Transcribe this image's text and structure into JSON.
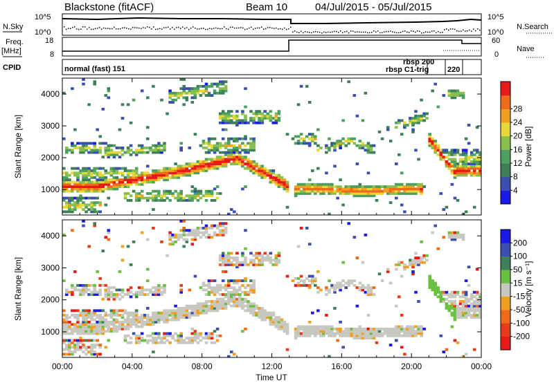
{
  "header": {
    "station": "Blackstone (fitACF)",
    "beam": "Beam 10",
    "date_range": "04/Jul/2015 - 05/Jul/2015"
  },
  "left_labels": {
    "nsky": "N.Sky",
    "freq": "Freq.",
    "freq_unit": "[MHz]",
    "cpid": "CPID"
  },
  "right_labels": {
    "nsearch": "N.Search",
    "nave": "Nave"
  },
  "noise_panel": {
    "left_ticks": [
      "10^5",
      "10^0"
    ],
    "right_ticks": [
      "10^5",
      "10^0"
    ]
  },
  "freq_panel": {
    "left_ticks": [
      "18",
      "8"
    ],
    "right_ticks": [
      "60",
      "0"
    ]
  },
  "cpid_panel": {
    "labels": [
      "normal (fast) 151",
      "rbsp 200",
      "rbsp C1-trig",
      "220"
    ]
  },
  "colors": {
    "power_scale": [
      "#1a1ae6",
      "#3a4fb0",
      "#3f7f57",
      "#4ea060",
      "#88c050",
      "#e6d83a",
      "#f0a020",
      "#ef6a1a",
      "#e61a1a"
    ],
    "velocity_scale": [
      "#1a1ae6",
      "#3a4fb0",
      "#3f7f57",
      "#6ac040",
      "#c8c8c0",
      "#f0a020",
      "#ef6a1a",
      "#e63a1a",
      "#e61a1a"
    ]
  },
  "chart_data": [
    {
      "type": "heatmap",
      "title": "Power",
      "ylabel": "Slant Range [km]",
      "xlabel": "",
      "x_ticks": [
        "00:00",
        "04:00",
        "08:00",
        "12:00",
        "16:00",
        "20:00",
        "00:00"
      ],
      "y_ticks": [
        "1000",
        "2000",
        "3000",
        "4000"
      ],
      "ylim": [
        200,
        4500
      ],
      "xlim_hours": [
        0,
        24
      ],
      "colorbar": {
        "label": "Power [dB]",
        "ticks": [
          "4",
          "8",
          "12",
          "16",
          "20",
          "24",
          "28"
        ],
        "range": [
          0,
          30
        ]
      },
      "features": [
        {
          "hours": [
            0,
            2.2
          ],
          "range_km": [
            900,
            1300
          ],
          "level": "high"
        },
        {
          "hours": [
            2,
            6
          ],
          "range_km": [
            1200,
            1500
          ],
          "level": "high"
        },
        {
          "hours": [
            6,
            9.5
          ],
          "range_km": [
            1400,
            2000
          ],
          "level": "high"
        },
        {
          "hours": [
            9.5,
            13
          ],
          "range_km": [
            1100,
            2300
          ],
          "level": "high"
        },
        {
          "hours": [
            13.3,
            20.5
          ],
          "range_km": [
            850,
            1300
          ],
          "level": "medium"
        },
        {
          "hours": [
            21.5,
            24
          ],
          "range_km": [
            1200,
            2000
          ],
          "level": "high"
        }
      ]
    },
    {
      "type": "heatmap",
      "title": "Velocity",
      "ylabel": "Slant Range [km]",
      "xlabel": "Time UT",
      "x_ticks": [
        "00:00",
        "04:00",
        "08:00",
        "12:00",
        "16:00",
        "20:00",
        "00:00"
      ],
      "y_ticks": [
        "1000",
        "2000",
        "3000",
        "4000"
      ],
      "ylim": [
        200,
        4500
      ],
      "xlim_hours": [
        0,
        24
      ],
      "colorbar": {
        "label": "Velocity [m s⁻¹]",
        "ticks": [
          "200",
          "100",
          "50",
          "15",
          "-15",
          "-50",
          "-100",
          "-200"
        ],
        "range": [
          -250,
          250
        ]
      }
    }
  ]
}
